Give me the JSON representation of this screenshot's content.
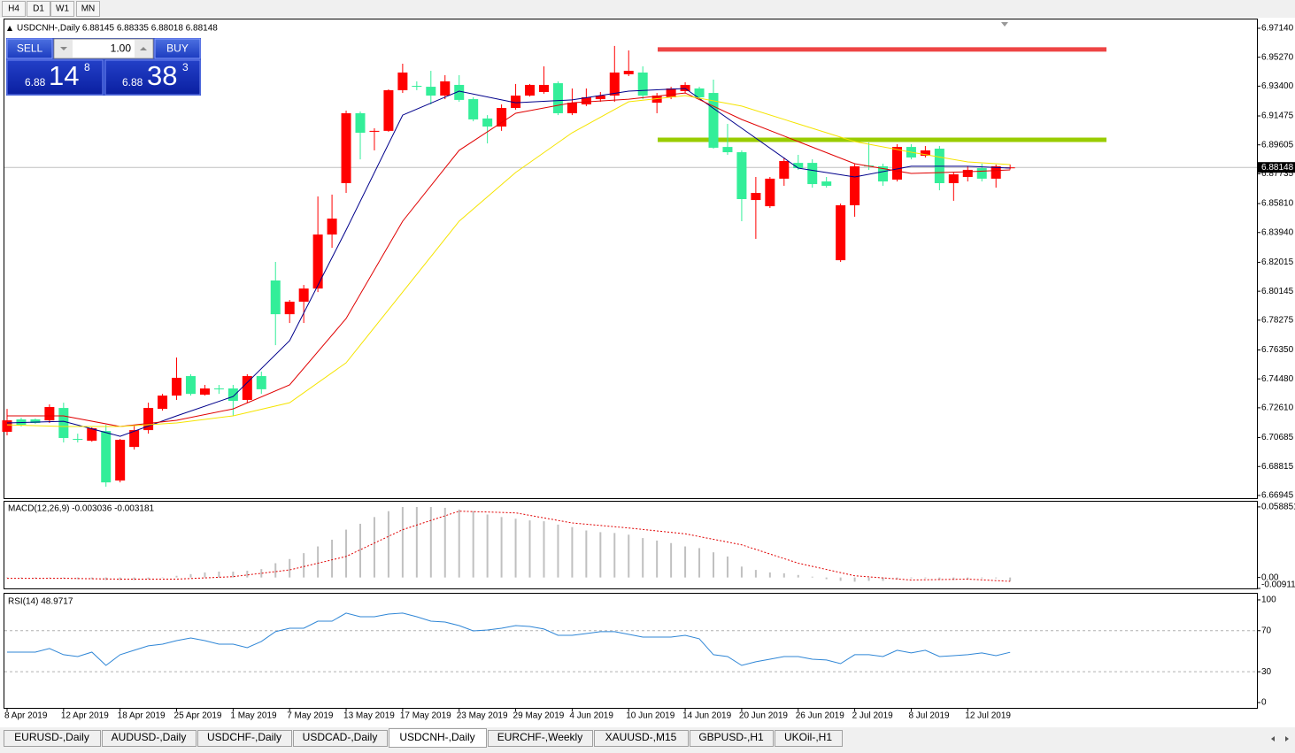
{
  "toolbar": {
    "timeframes": [
      "H4",
      "D1",
      "W1",
      "MN"
    ]
  },
  "trade_panel": {
    "sell_label": "SELL",
    "lot": "1.00",
    "buy_label": "BUY",
    "sell_price": {
      "prefix": "6.88",
      "big": "14",
      "small": "8"
    },
    "buy_price": {
      "prefix": "6.88",
      "big": "38",
      "small": "3"
    }
  },
  "chart_data": [
    {
      "type": "candlestick",
      "title": "USDCNH-,Daily  6.88145 6.88335 6.88018 6.88148",
      "categories": [
        "8 Apr 2019",
        null,
        null,
        null,
        "12 Apr 2019",
        null,
        null,
        null,
        "18 Apr 2019",
        null,
        null,
        null,
        "25 Apr 2019",
        null,
        null,
        null,
        "1 May 2019",
        null,
        null,
        null,
        "7 May 2019",
        null,
        null,
        null,
        "13 May 2019",
        null,
        null,
        null,
        "17 May 2019",
        null,
        null,
        null,
        "23 May 2019",
        null,
        null,
        null,
        "29 May 2019",
        null,
        null,
        null,
        "4 Jun 2019",
        null,
        null,
        null,
        "10 Jun 2019",
        null,
        null,
        null,
        "14 Jun 2019",
        null,
        null,
        null,
        "20 Jun 2019",
        null,
        null,
        null,
        "26 Jun 2019",
        null,
        null,
        null,
        "2 Jul 2019",
        null,
        null,
        null,
        "8 Jul 2019",
        null,
        null,
        null,
        "12 Jul 2019",
        null,
        null,
        null
      ],
      "open": [
        6.7106,
        6.7186,
        6.7186,
        6.718,
        6.726,
        6.706,
        6.7048,
        6.7111,
        6.6791,
        6.7008,
        6.7117,
        6.7254,
        6.734,
        6.7466,
        6.7346,
        6.7386,
        6.7386,
        6.7312,
        6.7466,
        6.8084,
        6.7866,
        6.7947,
        6.8032,
        6.8381,
        6.8713,
        6.9165,
        6.9045,
        6.9051,
        6.9314,
        6.9342,
        6.9336,
        6.9279,
        6.9348,
        6.9256,
        6.9131,
        6.9079,
        6.9199,
        6.9279,
        6.9302,
        6.9359,
        6.9165,
        6.9222,
        6.9256,
        6.9279,
        6.9417,
        6.9428,
        6.9233,
        6.9268,
        6.9308,
        6.9325,
        6.9296,
        6.8947,
        6.8913,
        6.8604,
        6.8564,
        6.8742,
        6.8844,
        6.8844,
        6.8724,
        6.8215,
        6.857,
        6.8827,
        6.8822,
        6.8736,
        6.8947,
        6.889,
        6.8936,
        6.8713,
        6.8753,
        6.881,
        6.8742,
        6.88145
      ],
      "high": [
        6.7254,
        6.7197,
        6.7192,
        6.7283,
        6.7294,
        6.7094,
        6.7135,
        6.7151,
        6.706,
        6.7151,
        6.7294,
        6.7351,
        6.7586,
        6.7478,
        6.7409,
        6.7409,
        6.7409,
        6.7478,
        6.7495,
        6.8204,
        6.7958,
        6.8055,
        6.8627,
        6.8639,
        6.9182,
        6.9176,
        6.9068,
        6.9319,
        6.9485,
        6.9371,
        6.9439,
        6.9411,
        6.9411,
        6.9268,
        6.9153,
        6.9222,
        6.9354,
        6.9354,
        6.9468,
        6.9371,
        6.9325,
        6.9325,
        6.9302,
        6.96,
        6.9571,
        6.9468,
        6.9296,
        6.9336,
        6.9365,
        6.9336,
        6.9382,
        6.9096,
        6.8925,
        6.8753,
        6.8753,
        6.8879,
        6.8896,
        6.8867,
        6.8753,
        6.8581,
        6.8839,
        6.8976,
        6.8839,
        6.8965,
        6.8965,
        6.8953,
        6.8953,
        6.8782,
        6.8822,
        6.8839,
        6.8833,
        6.88335
      ],
      "low": [
        6.7083,
        6.714,
        6.7157,
        6.7163,
        6.7037,
        6.7037,
        6.7042,
        6.6751,
        6.6779,
        6.6991,
        6.7094,
        6.7243,
        6.7312,
        6.734,
        6.734,
        6.7351,
        6.7209,
        6.7294,
        6.7351,
        6.7666,
        6.7809,
        6.7809,
        6.8009,
        6.8295,
        6.865,
        6.8867,
        6.8925,
        6.9045,
        6.9296,
        6.9314,
        6.9222,
        6.9256,
        6.9239,
        6.9113,
        6.897,
        6.9051,
        6.9188,
        6.9273,
        6.9291,
        6.9153,
        6.9153,
        6.9211,
        6.9239,
        6.9239,
        6.9405,
        6.9256,
        6.9165,
        6.9256,
        6.9296,
        6.9256,
        6.8936,
        6.8896,
        6.8467,
        6.8353,
        6.8553,
        6.8696,
        6.8799,
        6.8684,
        6.8684,
        6.8204,
        6.8496,
        6.8799,
        6.8696,
        6.8724,
        6.8867,
        6.8879,
        6.8667,
        6.8599,
        6.8724,
        6.8724,
        6.8684,
        6.88018
      ],
      "close": [
        6.718,
        6.7151,
        6.7163,
        6.7266,
        6.7066,
        6.7054,
        6.7129,
        6.6779,
        6.7054,
        6.7117,
        6.726,
        6.734,
        6.7455,
        6.7351,
        6.7386,
        6.7381,
        6.7306,
        6.7466,
        6.7381,
        6.7866,
        6.7947,
        6.8032,
        6.8381,
        6.8484,
        6.9165,
        6.9039,
        6.9051,
        6.9314,
        6.9428,
        6.9336,
        6.9279,
        6.9371,
        6.9251,
        6.9125,
        6.9079,
        6.9199,
        6.9279,
        6.9348,
        6.9348,
        6.9165,
        6.9233,
        6.9268,
        6.9279,
        6.9428,
        6.9439,
        6.9279,
        6.9279,
        6.9325,
        6.9348,
        6.9268,
        6.8942,
        6.8913,
        6.861,
        6.865,
        6.8742,
        6.8856,
        6.881,
        6.8707,
        6.8696,
        6.857,
        6.8822,
        6.8822,
        6.8724,
        6.8947,
        6.8879,
        6.8925,
        6.8713,
        6.877,
        6.8799,
        6.8742,
        6.8822,
        6.88148
      ],
      "up_color": "#ff0000",
      "down_color": "#33ee99",
      "moving_averages": [
        {
          "color": "#00008b",
          "x": [
            0,
            4,
            8,
            12,
            16,
            20,
            24,
            28,
            32,
            36,
            40,
            44,
            48,
            52,
            56,
            60,
            64,
            68,
            71
          ],
          "values": [
            6.7163,
            6.7174,
            6.7077,
            6.7209,
            6.7334,
            6.7695,
            6.841,
            6.9153,
            6.9308,
            6.9233,
            6.9251,
            6.9308,
            6.9325,
            6.9068,
            6.881,
            6.8753,
            6.8822,
            6.8822,
            6.881
          ]
        },
        {
          "color": "#e00000",
          "x": [
            0,
            4,
            8,
            12,
            16,
            20,
            24,
            28,
            32,
            36,
            40,
            44,
            48,
            52,
            56,
            60,
            64,
            68,
            71
          ],
          "values": [
            6.7209,
            6.7209,
            6.714,
            6.718,
            6.7254,
            6.7409,
            6.7838,
            6.8467,
            6.8925,
            6.9165,
            6.9233,
            6.9256,
            6.9296,
            6.9125,
            6.8982,
            6.8839,
            6.8776,
            6.8787,
            6.8799
          ]
        },
        {
          "color": "#f5e400",
          "x": [
            0,
            4,
            8,
            12,
            16,
            20,
            24,
            28,
            32,
            36,
            40,
            44,
            48,
            52,
            56,
            60,
            64,
            68,
            71
          ],
          "values": [
            6.7151,
            6.714,
            6.714,
            6.7163,
            6.7209,
            6.7294,
            6.7552,
            6.8009,
            6.8467,
            6.8782,
            6.9039,
            6.9239,
            6.9279,
            6.9211,
            6.9096,
            6.8982,
            6.8913,
            6.885,
            6.8833
          ]
        }
      ],
      "price_levels": [
        {
          "value": 6.9577,
          "color": "#ee4444"
        },
        {
          "value": 6.8993,
          "color": "#99cc00"
        }
      ],
      "current_price": 6.88148,
      "ylim": [
        6.6677,
        6.9771
      ],
      "yticks": [
        {
          "value": 6.9714,
          "label": "6.97140"
        },
        {
          "value": 6.9527,
          "label": "6.95270"
        },
        {
          "value": 6.934,
          "label": "6.93400"
        },
        6.91475,
        6.89605,
        6.87735,
        {
          "value": 6.8581,
          "label": "6.85810"
        },
        {
          "value": 6.8394,
          "label": "6.83940"
        },
        6.82015,
        6.80145,
        6.78275,
        {
          "value": 6.7635,
          "label": "6.76350"
        },
        {
          "value": 6.7448,
          "label": "6.74480"
        },
        {
          "value": 6.7261,
          "label": "6.72610"
        },
        6.70685,
        6.68815,
        6.66945
      ]
    },
    {
      "type": "macd",
      "title": "MACD(12,26,9) -0.003036 -0.003181",
      "values": [
        0,
        -0.0007,
        -0.0007,
        0,
        -0.0007,
        -0.0014,
        -0.0014,
        -0.0021,
        -0.0021,
        -0.0021,
        -0.0014,
        0,
        0.0014,
        0.0028,
        0.0042,
        0.0049,
        0.0049,
        0.0056,
        0.007,
        0.0119,
        0.0154,
        0.0203,
        0.0259,
        0.0315,
        0.0399,
        0.0448,
        0.0504,
        0.0553,
        0.0588,
        0.0588,
        0.0588,
        0.0581,
        0.0567,
        0.0553,
        0.0525,
        0.0504,
        0.049,
        0.0476,
        0.0469,
        0.0441,
        0.042,
        0.0392,
        0.0378,
        0.0371,
        0.0357,
        0.0329,
        0.0308,
        0.0287,
        0.0259,
        0.0245,
        0.021,
        0.0175,
        0.0091,
        0.0063,
        0.0042,
        0.0035,
        0.0021,
        0.0007,
        -0.0014,
        -0.0028,
        -0.0035,
        -0.0028,
        -0.0028,
        -0.0014,
        -0.0007,
        -0.0007,
        -0.0021,
        -0.0021,
        -0.0014,
        -0.0007,
        -0.0007,
        -0.003036
      ],
      "color": "#c0c0c0",
      "signal": {
        "color": "#e00000",
        "x": [
          0,
          4,
          8,
          12,
          16,
          20,
          24,
          28,
          32,
          36,
          40,
          44,
          48,
          52,
          56,
          60,
          64,
          68,
          71
        ],
        "values": [
          -0.0007,
          -0.0007,
          -0.0014,
          -0.0014,
          0.0007,
          0.0063,
          0.0175,
          0.0399,
          0.0553,
          0.0539,
          0.0455,
          0.0413,
          0.0364,
          0.0273,
          0.0119,
          0.0014,
          -0.0021,
          -0.0014,
          -0.003181
        ]
      },
      "ylim": [
        -0.009116,
        0.0632
      ],
      "yticks": [
        0.058851,
        {
          "value": 0,
          "label": "0.00"
        },
        -0.009116
      ]
    },
    {
      "type": "rsi",
      "title": "RSI(14) 48.9717",
      "values": [
        49.1,
        49.1,
        49.1,
        52.6,
        46.6,
        44.8,
        49.1,
        36.2,
        46.6,
        50.9,
        55.2,
        56.9,
        60.3,
        62.9,
        60.3,
        56.9,
        56.9,
        53.4,
        59.5,
        69,
        72.4,
        72.4,
        79.3,
        79.3,
        87.1,
        83.6,
        83.6,
        86.2,
        87.1,
        83.6,
        79.3,
        78.4,
        75,
        69.8,
        70.7,
        72.4,
        75,
        74.1,
        71.6,
        65.5,
        65.5,
        67.2,
        69,
        69,
        66.4,
        63.8,
        63.8,
        63.8,
        65.5,
        62.1,
        46.6,
        44.8,
        36.2,
        39.7,
        42.2,
        44.8,
        44.8,
        42.2,
        41.4,
        37.9,
        46.6,
        46.6,
        44.8,
        50.9,
        48.3,
        50.9,
        44.8,
        45.7,
        46.6,
        48.3,
        45.7,
        48.9717
      ],
      "color": "#2f86d6",
      "levels": [
        70,
        30
      ],
      "ylim": [
        -5.2,
        106
      ],
      "yticks": [
        100,
        70,
        30,
        0
      ]
    }
  ],
  "tabs": [
    "EURUSD-,Daily",
    "AUDUSD-,Daily",
    "USDCHF-,Daily",
    "USDCAD-,Daily",
    "USDCNH-,Daily",
    "EURCHF-,Weekly",
    "XAUUSD-,M15",
    "GBPUSD-,H1",
    "UKOil-,H1"
  ],
  "active_tab": 4
}
